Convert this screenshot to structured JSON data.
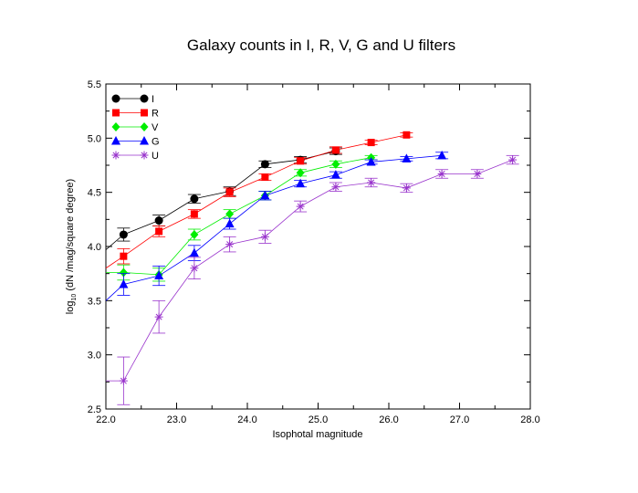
{
  "chart_data": {
    "type": "line",
    "title": "Galaxy counts in I, R, V, G and U filters",
    "xlabel": "Isophotal magnitude",
    "ylabel_prefix": "log",
    "ylabel_sub": "10",
    "ylabel_suffix": " (dN /mag/square degree)",
    "xlim": [
      22.0,
      28.0
    ],
    "ylim": [
      2.5,
      5.5
    ],
    "xticks": [
      22.0,
      23.0,
      24.0,
      25.0,
      26.0,
      27.0,
      28.0
    ],
    "yticks": [
      2.5,
      3.0,
      3.5,
      4.0,
      4.5,
      5.0,
      5.5
    ],
    "grid": false,
    "legend_position": "top-left",
    "series": [
      {
        "name": "I",
        "color": "#000000",
        "marker": "circle",
        "x": [
          22.25,
          22.75,
          23.25,
          23.75,
          24.25,
          24.75,
          25.25
        ],
        "y": [
          4.11,
          4.24,
          4.44,
          4.51,
          4.76,
          4.8,
          4.88
        ],
        "err": [
          0.06,
          0.05,
          0.04,
          0.04,
          0.03,
          0.03,
          0.03
        ],
        "line_from": [
          22.0,
          3.97
        ]
      },
      {
        "name": "R",
        "color": "#ff0000",
        "marker": "square",
        "x": [
          22.25,
          22.75,
          23.25,
          23.75,
          24.25,
          24.75,
          25.25,
          25.75,
          26.25
        ],
        "y": [
          3.91,
          4.14,
          4.3,
          4.5,
          4.64,
          4.79,
          4.89,
          4.96,
          5.03
        ],
        "err": [
          0.07,
          0.05,
          0.04,
          0.04,
          0.03,
          0.03,
          0.03,
          0.02,
          0.02
        ],
        "line_from": [
          22.0,
          3.8
        ]
      },
      {
        "name": "V",
        "color": "#00ee00",
        "marker": "diamond",
        "x": [
          22.25,
          22.75,
          23.25,
          23.75,
          24.25,
          24.75,
          25.25,
          25.75
        ],
        "y": [
          3.76,
          3.74,
          4.11,
          4.3,
          4.47,
          4.68,
          4.76,
          4.82
        ],
        "err": [
          0.07,
          0.06,
          0.05,
          0.04,
          0.04,
          0.03,
          0.03,
          0.02
        ],
        "line_from": [
          22.0,
          3.76
        ]
      },
      {
        "name": "G",
        "color": "#0000ff",
        "marker": "triangle",
        "x": [
          22.25,
          22.75,
          23.25,
          23.75,
          24.25,
          24.75,
          25.25,
          25.75,
          26.25,
          26.75
        ],
        "y": [
          3.65,
          3.73,
          3.94,
          4.21,
          4.47,
          4.58,
          4.66,
          4.78,
          4.81,
          4.84
        ],
        "err": [
          0.1,
          0.09,
          0.07,
          0.05,
          0.04,
          0.03,
          0.03,
          0.02,
          0.02,
          0.03
        ],
        "line_from": [
          22.0,
          3.5
        ]
      },
      {
        "name": "U",
        "color": "#9933cc",
        "marker": "asterisk",
        "x": [
          22.25,
          22.75,
          23.25,
          23.75,
          24.25,
          24.75,
          25.25,
          25.75,
          26.25,
          26.75,
          27.25,
          27.75
        ],
        "y": [
          2.76,
          3.35,
          3.8,
          4.02,
          4.09,
          4.37,
          4.55,
          4.59,
          4.54,
          4.67,
          4.67,
          4.8
        ],
        "err": [
          0.22,
          0.15,
          0.1,
          0.07,
          0.06,
          0.05,
          0.04,
          0.04,
          0.04,
          0.04,
          0.04,
          0.04
        ],
        "line_from": [
          22.0,
          2.76
        ]
      }
    ]
  }
}
